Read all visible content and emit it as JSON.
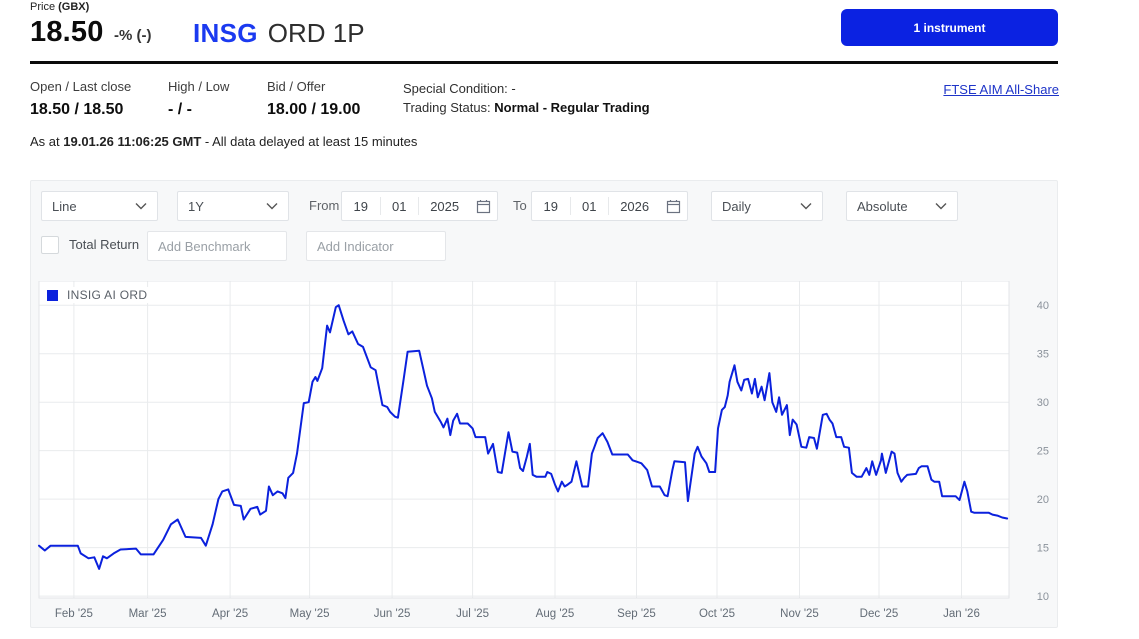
{
  "header": {
    "price_label_prefix": "Price ",
    "price_label_unit": "(GBX)",
    "price": "18.50",
    "change": "-% (-)",
    "ticker": "INSG",
    "instrument_type": "ORD 1P",
    "instrument_button": "1 instrument"
  },
  "quote": {
    "columns": [
      {
        "label": "Open / Last close",
        "value": "18.50 / 18.50"
      },
      {
        "label": "High / Low",
        "value": "- / -"
      },
      {
        "label": "Bid / Offer",
        "value": "18.00 / 19.00"
      }
    ],
    "special_condition_label": "Special Condition: ",
    "special_condition_value": "-",
    "trading_status_label": "Trading Status: ",
    "trading_status_value": "Normal - Regular Trading",
    "index_link": "FTSE AIM All-Share",
    "as_at_prefix": "As at ",
    "as_at_time": "19.01.26 11:06:25 GMT",
    "as_at_suffix": " - All data delayed at least 15 minutes"
  },
  "toolbar": {
    "chart_type": "Line",
    "range": "1Y",
    "from_label": "From",
    "from_day": "19",
    "from_month": "01",
    "from_year": "2025",
    "to_label": "To",
    "to_day": "19",
    "to_month": "01",
    "to_year": "2026",
    "frequency": "Daily",
    "mode": "Absolute",
    "total_return_label": "Total Return",
    "benchmark_placeholder": "Add Benchmark",
    "indicator_placeholder": "Add Indicator"
  },
  "colors": {
    "accent_blue": "#0b22e2",
    "ticker_blue": "#1b3af0",
    "link_blue": "#1e34c8",
    "line_blue": "#0b21dd",
    "gridline": "#e9ebed"
  },
  "chart_data": {
    "type": "line",
    "legend": "INSIG AI ORD",
    "line_color": "#0b21dd",
    "x_range": [
      "19 Jan 2025",
      "19 Jan 2026"
    ],
    "ylim": [
      9.8,
      42.5
    ],
    "y_ticks": [
      10,
      15,
      20,
      25,
      30,
      35,
      40
    ],
    "grid": true,
    "legend_position": "top-left",
    "x_labels": [
      {
        "label": "Feb '25",
        "f": 0.036
      },
      {
        "label": "Mar '25",
        "f": 0.112
      },
      {
        "label": "Apr '25",
        "f": 0.197
      },
      {
        "label": "May '25",
        "f": 0.279
      },
      {
        "label": "Jun '25",
        "f": 0.364
      },
      {
        "label": "Jul '25",
        "f": 0.447
      },
      {
        "label": "Aug '25",
        "f": 0.532
      },
      {
        "label": "Sep '25",
        "f": 0.616
      },
      {
        "label": "Oct '25",
        "f": 0.699
      },
      {
        "label": "Nov '25",
        "f": 0.784
      },
      {
        "label": "Dec '25",
        "f": 0.866
      },
      {
        "label": "Jan '26",
        "f": 0.951
      }
    ],
    "points": [
      [
        0.0,
        15.2
      ],
      [
        0.006,
        14.7
      ],
      [
        0.012,
        15.2
      ],
      [
        0.04,
        15.2
      ],
      [
        0.043,
        14.4
      ],
      [
        0.051,
        13.9
      ],
      [
        0.057,
        14.0
      ],
      [
        0.062,
        12.8
      ],
      [
        0.066,
        14.1
      ],
      [
        0.07,
        13.9
      ],
      [
        0.077,
        14.4
      ],
      [
        0.084,
        14.8
      ],
      [
        0.1,
        14.9
      ],
      [
        0.105,
        14.3
      ],
      [
        0.118,
        14.3
      ],
      [
        0.128,
        15.8
      ],
      [
        0.136,
        17.4
      ],
      [
        0.143,
        17.9
      ],
      [
        0.151,
        16.1
      ],
      [
        0.167,
        16.0
      ],
      [
        0.172,
        15.2
      ],
      [
        0.179,
        17.4
      ],
      [
        0.185,
        20.0
      ],
      [
        0.189,
        20.8
      ],
      [
        0.195,
        21.0
      ],
      [
        0.201,
        19.4
      ],
      [
        0.208,
        19.3
      ],
      [
        0.211,
        17.9
      ],
      [
        0.218,
        19.0
      ],
      [
        0.225,
        19.2
      ],
      [
        0.228,
        18.4
      ],
      [
        0.234,
        18.8
      ],
      [
        0.237,
        21.3
      ],
      [
        0.241,
        20.4
      ],
      [
        0.246,
        20.8
      ],
      [
        0.251,
        20.6
      ],
      [
        0.254,
        20.1
      ],
      [
        0.257,
        22.2
      ],
      [
        0.262,
        22.7
      ],
      [
        0.266,
        24.7
      ],
      [
        0.273,
        29.9
      ],
      [
        0.278,
        30.0
      ],
      [
        0.282,
        32.1
      ],
      [
        0.285,
        32.6
      ],
      [
        0.287,
        32.2
      ],
      [
        0.292,
        33.5
      ],
      [
        0.297,
        37.9
      ],
      [
        0.3,
        37.2
      ],
      [
        0.306,
        39.8
      ],
      [
        0.309,
        40.0
      ],
      [
        0.314,
        38.4
      ],
      [
        0.319,
        37.0
      ],
      [
        0.323,
        37.3
      ],
      [
        0.329,
        36.0
      ],
      [
        0.334,
        35.7
      ],
      [
        0.342,
        33.6
      ],
      [
        0.347,
        33.3
      ],
      [
        0.354,
        29.7
      ],
      [
        0.359,
        29.5
      ],
      [
        0.362,
        29.0
      ],
      [
        0.367,
        28.5
      ],
      [
        0.37,
        28.4
      ],
      [
        0.376,
        32.4
      ],
      [
        0.38,
        35.2
      ],
      [
        0.392,
        35.3
      ],
      [
        0.396,
        33.5
      ],
      [
        0.4,
        31.7
      ],
      [
        0.405,
        30.4
      ],
      [
        0.408,
        29.0
      ],
      [
        0.414,
        28.0
      ],
      [
        0.417,
        27.4
      ],
      [
        0.421,
        28.3
      ],
      [
        0.424,
        26.6
      ],
      [
        0.427,
        28.1
      ],
      [
        0.431,
        28.8
      ],
      [
        0.434,
        27.8
      ],
      [
        0.442,
        27.8
      ],
      [
        0.447,
        27.3
      ],
      [
        0.45,
        26.4
      ],
      [
        0.46,
        26.4
      ],
      [
        0.463,
        24.7
      ],
      [
        0.468,
        25.7
      ],
      [
        0.473,
        22.8
      ],
      [
        0.477,
        22.7
      ],
      [
        0.484,
        26.9
      ],
      [
        0.488,
        24.9
      ],
      [
        0.493,
        24.8
      ],
      [
        0.496,
        23.2
      ],
      [
        0.499,
        22.9
      ],
      [
        0.503,
        24.4
      ],
      [
        0.506,
        25.7
      ],
      [
        0.509,
        22.5
      ],
      [
        0.513,
        22.3
      ],
      [
        0.522,
        22.3
      ],
      [
        0.524,
        22.8
      ],
      [
        0.528,
        22.6
      ],
      [
        0.532,
        21.5
      ],
      [
        0.535,
        20.8
      ],
      [
        0.539,
        21.8
      ],
      [
        0.542,
        21.3
      ],
      [
        0.545,
        21.5
      ],
      [
        0.549,
        21.8
      ],
      [
        0.554,
        23.9
      ],
      [
        0.56,
        21.3
      ],
      [
        0.566,
        21.3
      ],
      [
        0.57,
        24.7
      ],
      [
        0.572,
        25.2
      ],
      [
        0.576,
        26.3
      ],
      [
        0.581,
        26.8
      ],
      [
        0.586,
        25.9
      ],
      [
        0.591,
        24.6
      ],
      [
        0.607,
        24.6
      ],
      [
        0.612,
        24.0
      ],
      [
        0.621,
        23.7
      ],
      [
        0.627,
        23.0
      ],
      [
        0.632,
        21.3
      ],
      [
        0.64,
        21.3
      ],
      [
        0.645,
        20.4
      ],
      [
        0.648,
        20.3
      ],
      [
        0.653,
        23.0
      ],
      [
        0.655,
        23.9
      ],
      [
        0.666,
        23.8
      ],
      [
        0.669,
        19.8
      ],
      [
        0.676,
        24.7
      ],
      [
        0.679,
        25.4
      ],
      [
        0.683,
        24.4
      ],
      [
        0.688,
        23.7
      ],
      [
        0.691,
        22.8
      ],
      [
        0.697,
        22.8
      ],
      [
        0.7,
        27.3
      ],
      [
        0.704,
        29.2
      ],
      [
        0.707,
        29.5
      ],
      [
        0.71,
        30.7
      ],
      [
        0.712,
        32.1
      ],
      [
        0.717,
        33.8
      ],
      [
        0.72,
        32.1
      ],
      [
        0.724,
        31.2
      ],
      [
        0.727,
        32.3
      ],
      [
        0.731,
        32.4
      ],
      [
        0.735,
        30.9
      ],
      [
        0.738,
        32.4
      ],
      [
        0.741,
        30.5
      ],
      [
        0.745,
        31.6
      ],
      [
        0.748,
        30.2
      ],
      [
        0.753,
        33.0
      ],
      [
        0.756,
        30.0
      ],
      [
        0.76,
        29.0
      ],
      [
        0.763,
        30.5
      ],
      [
        0.766,
        28.7
      ],
      [
        0.771,
        29.7
      ],
      [
        0.774,
        26.6
      ],
      [
        0.777,
        28.2
      ],
      [
        0.781,
        27.7
      ],
      [
        0.786,
        25.4
      ],
      [
        0.791,
        25.3
      ],
      [
        0.794,
        26.4
      ],
      [
        0.799,
        26.3
      ],
      [
        0.802,
        25.2
      ],
      [
        0.808,
        28.7
      ],
      [
        0.812,
        28.8
      ],
      [
        0.815,
        28.2
      ],
      [
        0.818,
        27.8
      ],
      [
        0.822,
        26.4
      ],
      [
        0.827,
        26.4
      ],
      [
        0.83,
        25.4
      ],
      [
        0.835,
        25.3
      ],
      [
        0.838,
        22.7
      ],
      [
        0.843,
        22.3
      ],
      [
        0.848,
        22.3
      ],
      [
        0.853,
        23.2
      ],
      [
        0.856,
        22.5
      ],
      [
        0.859,
        23.9
      ],
      [
        0.863,
        22.5
      ],
      [
        0.868,
        24.0
      ],
      [
        0.869,
        24.7
      ],
      [
        0.873,
        22.7
      ],
      [
        0.879,
        24.9
      ],
      [
        0.882,
        24.7
      ],
      [
        0.885,
        22.7
      ],
      [
        0.889,
        21.8
      ],
      [
        0.892,
        22.2
      ],
      [
        0.895,
        22.5
      ],
      [
        0.904,
        22.6
      ],
      [
        0.907,
        23.2
      ],
      [
        0.91,
        23.4
      ],
      [
        0.916,
        23.4
      ],
      [
        0.92,
        22.0
      ],
      [
        0.923,
        21.8
      ],
      [
        0.928,
        21.8
      ],
      [
        0.931,
        20.3
      ],
      [
        0.945,
        20.3
      ],
      [
        0.949,
        19.9
      ],
      [
        0.954,
        21.8
      ],
      [
        0.957,
        20.8
      ],
      [
        0.961,
        18.7
      ],
      [
        0.964,
        18.6
      ],
      [
        0.979,
        18.6
      ],
      [
        0.983,
        18.4
      ],
      [
        0.988,
        18.3
      ],
      [
        0.993,
        18.1
      ],
      [
        0.998,
        18.0
      ]
    ]
  }
}
